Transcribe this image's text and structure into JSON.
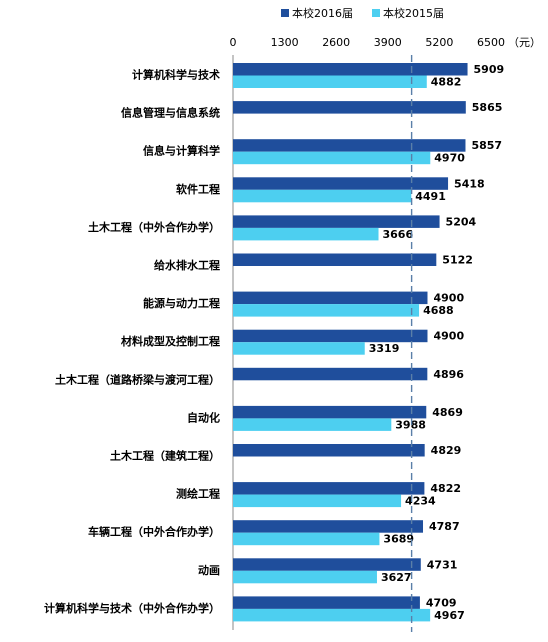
{
  "chart_data": {
    "type": "bar",
    "orientation": "horizontal",
    "title": "",
    "xlabel": "",
    "ylabel": "",
    "unit": "（元）",
    "xlim": [
      0,
      6500
    ],
    "xticks": [
      0,
      1300,
      2600,
      3900,
      5200,
      6500
    ],
    "reference_line": 4500,
    "legend_position": "top-right",
    "grid": false,
    "categories": [
      "计算机科学与技术",
      "信息管理与信息系统",
      "信息与计算科学",
      "软件工程",
      "土木工程（中外合作办学）",
      "给水排水工程",
      "能源与动力工程",
      "材料成型及控制工程",
      "土木工程（道路桥梁与渡河工程）",
      "自动化",
      "土木工程（建筑工程）",
      "测绘工程",
      "车辆工程（中外合作办学）",
      "动画",
      "计算机科学与技术（中外合作办学）"
    ],
    "series": [
      {
        "name": "本校2016届",
        "color": "#1F4E9C",
        "values": [
          5909,
          5865,
          5857,
          5418,
          5204,
          5122,
          4900,
          4900,
          4896,
          4869,
          4829,
          4822,
          4787,
          4731,
          4709
        ]
      },
      {
        "name": "本校2015届",
        "color": "#4DCFF0",
        "values": [
          4882,
          null,
          4970,
          4491,
          3666,
          null,
          4688,
          3319,
          null,
          3988,
          null,
          4234,
          3689,
          3627,
          4967
        ]
      }
    ]
  }
}
